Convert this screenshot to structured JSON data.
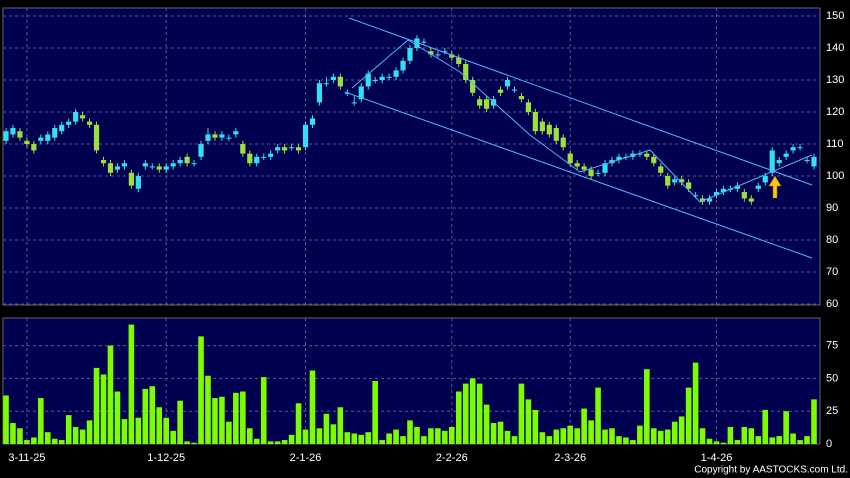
{
  "chart_data": {
    "type": "candlestick",
    "footnote": "Copyright by AASTOCKS.com Ltd.",
    "categories": [
      null,
      null,
      null,
      "3-11-25",
      null,
      null,
      null,
      null,
      null,
      null,
      null,
      null,
      null,
      null,
      null,
      null,
      null,
      null,
      null,
      null,
      null,
      null,
      null,
      "1-12-25",
      null,
      null,
      null,
      null,
      null,
      null,
      null,
      null,
      null,
      null,
      null,
      null,
      null,
      null,
      null,
      null,
      null,
      null,
      null,
      "2-1-26",
      null,
      null,
      null,
      null,
      null,
      null,
      null,
      null,
      null,
      null,
      null,
      null,
      null,
      null,
      null,
      null,
      null,
      null,
      null,
      null,
      "2-2-26",
      null,
      null,
      null,
      null,
      null,
      null,
      null,
      null,
      null,
      null,
      null,
      null,
      null,
      null,
      null,
      null,
      "2-3-26",
      null,
      null,
      null,
      null,
      null,
      null,
      null,
      null,
      null,
      null,
      null,
      null,
      null,
      null,
      null,
      null,
      null,
      null,
      null,
      null,
      "1-4-26",
      null,
      null,
      null,
      null,
      null,
      null,
      null,
      null,
      null,
      null,
      null,
      null,
      null,
      null
    ],
    "open": [
      111,
      113,
      114,
      111,
      110,
      111,
      111,
      112,
      114,
      116,
      117,
      119,
      117,
      116,
      105,
      104,
      102,
      103,
      101,
      96,
      103,
      103,
      103,
      102,
      103,
      104,
      106,
      104,
      106,
      111,
      113,
      112,
      112,
      113,
      110,
      107,
      104,
      106,
      106,
      108,
      109,
      109,
      109,
      109,
      116,
      123,
      129,
      130,
      131,
      126,
      123,
      124,
      128,
      130,
      130,
      131,
      131,
      133,
      136,
      140,
      142,
      139,
      138,
      139,
      138,
      137,
      135,
      130,
      124,
      124,
      122,
      127,
      128,
      127,
      125,
      123,
      120,
      117,
      116,
      115,
      112,
      107,
      104,
      103,
      102,
      101,
      101,
      104,
      105,
      106,
      106,
      107,
      107,
      106,
      103,
      100,
      98,
      99,
      98,
      94,
      93,
      92,
      94,
      95,
      96,
      96,
      95,
      93,
      96,
      98,
      101,
      104,
      106,
      108,
      109,
      105,
      103
    ],
    "high": [
      115,
      116,
      115,
      112,
      111,
      113,
      114,
      116,
      117,
      118,
      121,
      120,
      118,
      117,
      106,
      105,
      104,
      105,
      102,
      101,
      105,
      104,
      104,
      104,
      105,
      106,
      107,
      105,
      111,
      115,
      114,
      114,
      113,
      115,
      111,
      108,
      107,
      107,
      108,
      110,
      110,
      110,
      110,
      117,
      119,
      130,
      131,
      132,
      132,
      127,
      125,
      129,
      133,
      131,
      132,
      132,
      134,
      137,
      141,
      144,
      143,
      140,
      139,
      140,
      139,
      138,
      136,
      131,
      125,
      125,
      125,
      128,
      131,
      128,
      126,
      124,
      121,
      118,
      117,
      116,
      113,
      108,
      105,
      104,
      103,
      102,
      105,
      106,
      107,
      107,
      108,
      108,
      108,
      107,
      104,
      101,
      100,
      100,
      99,
      95,
      94,
      94,
      96,
      97,
      97,
      98,
      96,
      94,
      98,
      101,
      109,
      106,
      108,
      110,
      110,
      106,
      107
    ],
    "low": [
      110,
      112,
      111,
      109,
      107,
      110,
      110,
      111,
      113,
      115,
      116,
      117,
      115,
      107,
      103,
      100,
      101,
      102,
      96,
      95,
      102,
      102,
      101,
      101,
      102,
      103,
      103,
      103,
      105,
      110,
      111,
      111,
      111,
      112,
      106,
      103,
      103,
      105,
      105,
      107,
      107,
      108,
      107,
      108,
      115,
      122,
      128,
      129,
      127,
      125,
      122,
      123,
      127,
      129,
      129,
      130,
      130,
      132,
      135,
      139,
      141,
      137,
      137,
      138,
      136,
      134,
      129,
      125,
      121,
      120,
      121,
      125,
      127,
      126,
      123,
      119,
      113,
      113,
      112,
      110,
      108,
      103,
      102,
      101,
      99,
      100,
      100,
      103,
      104,
      105,
      105,
      106,
      105,
      103,
      100,
      96,
      97,
      97,
      95,
      93,
      91,
      91,
      93,
      94,
      95,
      95,
      92,
      91,
      95,
      97,
      100,
      103,
      105,
      107,
      108,
      104,
      102
    ],
    "close": [
      114,
      115,
      112,
      110,
      108,
      112,
      113,
      115,
      116,
      117,
      120,
      118,
      116,
      108,
      104,
      101,
      103,
      104,
      97,
      100,
      104,
      103,
      102,
      103,
      104,
      105,
      104,
      104,
      110,
      113,
      112,
      113,
      112,
      114,
      107,
      104,
      106,
      106,
      107,
      109,
      108,
      109,
      108,
      116,
      118,
      129,
      129,
      131,
      128,
      126,
      123,
      128,
      132,
      130,
      131,
      131,
      133,
      136,
      140,
      143,
      142,
      138,
      138,
      139,
      137,
      135,
      130,
      126,
      122,
      121,
      124,
      126,
      130,
      127,
      124,
      120,
      114,
      114,
      113,
      111,
      109,
      104,
      103,
      102,
      100,
      101,
      104,
      105,
      106,
      106,
      107,
      107,
      106,
      104,
      101,
      97,
      99,
      98,
      96,
      94,
      92,
      93,
      95,
      96,
      96,
      97,
      93,
      92,
      97,
      100,
      108,
      105,
      107,
      109,
      109,
      105,
      106
    ],
    "volume": [
      37,
      16,
      12,
      3,
      5,
      35,
      9,
      4,
      3,
      22,
      13,
      11,
      18,
      58,
      53,
      75,
      40,
      19,
      91,
      20,
      42,
      44,
      28,
      20,
      10,
      33,
      2,
      1,
      82,
      52,
      35,
      36,
      17,
      39,
      40,
      12,
      4,
      51,
      2,
      2,
      3,
      7,
      31,
      11,
      56,
      12,
      23,
      15,
      28,
      9,
      8,
      7,
      9,
      48,
      3,
      8,
      11,
      6,
      18,
      13,
      6,
      12,
      12,
      10,
      13,
      40,
      46,
      50,
      46,
      30,
      16,
      17,
      10,
      6,
      46,
      34,
      26,
      9,
      6,
      11,
      12,
      14,
      12,
      27,
      18,
      43,
      11,
      12,
      6,
      5,
      3,
      14,
      57,
      12,
      10,
      11,
      17,
      21,
      43,
      62,
      12,
      4,
      2,
      1,
      13,
      3,
      13,
      12,
      6,
      26,
      5,
      6,
      25,
      8,
      3,
      6,
      34
    ],
    "up_color": "#33dff0",
    "down_color": "#9be03c",
    "volume_color": "#7cfc00",
    "ylim": [
      59.7,
      152.5
    ],
    "yticks": [
      60,
      70,
      80,
      90,
      100,
      110,
      120,
      130,
      140,
      150
    ],
    "volume_ylim": [
      0,
      96
    ],
    "volume_yticks": [
      0,
      25,
      50,
      75
    ],
    "grid": true
  }
}
